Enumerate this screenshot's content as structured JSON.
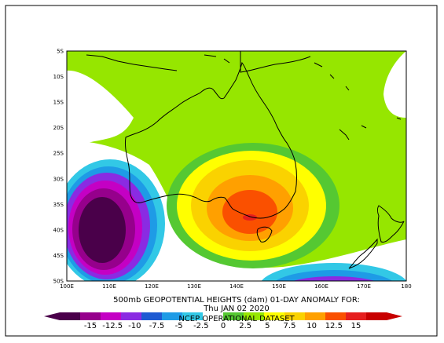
{
  "map": {
    "title_line1": "500mb GEOPOTENTIAL HEIGHTS (dam)  01-DAY ANOMALY FOR:",
    "title_line2": "Thu JAN 02 2020",
    "dataset_label": "NCEP OPERATIONAL DATASET",
    "lat_labels": [
      "5S",
      "10S",
      "15S",
      "20S",
      "25S",
      "30S",
      "35S",
      "40S",
      "45S",
      "50S"
    ],
    "lon_labels": [
      "100E",
      "110E",
      "120E",
      "130E",
      "140E",
      "150E",
      "160E",
      "170E",
      "180"
    ],
    "colorbar": {
      "labels": [
        "-15",
        "-12.5",
        "-10",
        "-7.5",
        "-5",
        "-2.5",
        "0",
        "2.5",
        "5",
        "7.5",
        "10",
        "12.5",
        "15"
      ],
      "colors": [
        "#4a004a",
        "#96008c",
        "#c400c4",
        "#8a2be2",
        "#1e5ad2",
        "#1e9be6",
        "#32c8e6",
        "#ffffff",
        "#55c832",
        "#96e600",
        "#ffff00",
        "#fad200",
        "#ffa000",
        "#fa5000",
        "#e61e1e",
        "#c80000"
      ]
    }
  }
}
